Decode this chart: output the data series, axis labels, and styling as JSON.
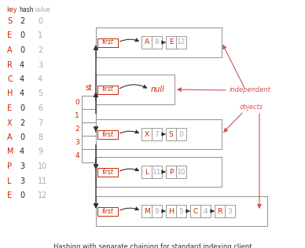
{
  "title": "Hashing with separate chaining for standard indexing client",
  "bg_color": "#ffffff",
  "key_hash_value": [
    [
      "S",
      "2",
      "0"
    ],
    [
      "E",
      "0",
      "1"
    ],
    [
      "A",
      "0",
      "2"
    ],
    [
      "R",
      "4",
      "3"
    ],
    [
      "C",
      "4",
      "4"
    ],
    [
      "H",
      "4",
      "5"
    ],
    [
      "E",
      "0",
      "6"
    ],
    [
      "X",
      "2",
      "7"
    ],
    [
      "A",
      "0",
      "8"
    ],
    [
      "M",
      "4",
      "9"
    ],
    [
      "P",
      "3",
      "10"
    ],
    [
      "L",
      "3",
      "11"
    ],
    [
      "E",
      "0",
      "12"
    ]
  ],
  "chains": {
    "0": {
      "nodes": [
        [
          "A",
          "8"
        ],
        [
          "E",
          "12"
        ]
      ]
    },
    "1": {
      "nodes": [],
      "null": true
    },
    "2": {
      "nodes": [
        [
          "X",
          "7"
        ],
        [
          "S",
          "0"
        ]
      ]
    },
    "3": {
      "nodes": [
        [
          "L",
          "11"
        ],
        [
          "P",
          "10"
        ]
      ]
    },
    "4": {
      "nodes": [
        [
          "M",
          "9"
        ],
        [
          "H",
          "5"
        ],
        [
          "C",
          "4"
        ],
        [
          "R",
          "3"
        ]
      ]
    }
  },
  "key_color": "#cc2200",
  "hash_color": "#222222",
  "value_color": "#aaaaaa",
  "index_color": "#cc2200",
  "node_key_color": "#cc2200",
  "node_val_color": "#aaaaaa",
  "first_color": "#cc2200",
  "null_color": "#cc2200",
  "arrow_color": "#333333",
  "red_arrow_color": "#cc5555",
  "box_color": "#999999",
  "st_label_color": "#cc2200",
  "annotation_color": "#cc5555",
  "first_box_color": "#cc2200"
}
